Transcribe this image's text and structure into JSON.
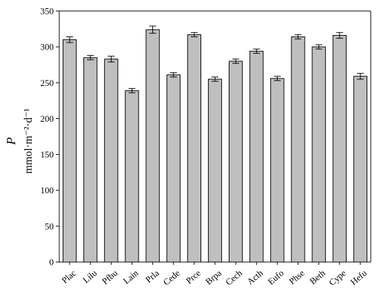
{
  "chart_data": {
    "type": "bar",
    "ylabel_symbol": "P",
    "ylabel_unit": "mmol·m⁻²·d⁻¹",
    "ylim": [
      0,
      350
    ],
    "yticks": [
      0,
      50,
      100,
      150,
      200,
      250,
      300,
      350
    ],
    "grid": false,
    "bar_color": "#bfbfbf",
    "categories": [
      "Plac",
      "Lilu",
      "Pfbu",
      "Lain",
      "Prla",
      "Cede",
      "Prce",
      "Brpa",
      "Cech",
      "Acth",
      "Eufo",
      "Phse",
      "Beth",
      "Cype",
      "Hefu"
    ],
    "values": [
      310,
      285,
      283,
      239,
      324,
      261,
      317,
      255,
      280,
      294,
      256,
      314,
      300,
      316,
      259
    ],
    "errors": [
      4,
      3,
      4,
      3,
      5,
      3,
      3,
      3,
      3,
      3,
      3,
      3,
      3,
      4,
      4
    ]
  }
}
